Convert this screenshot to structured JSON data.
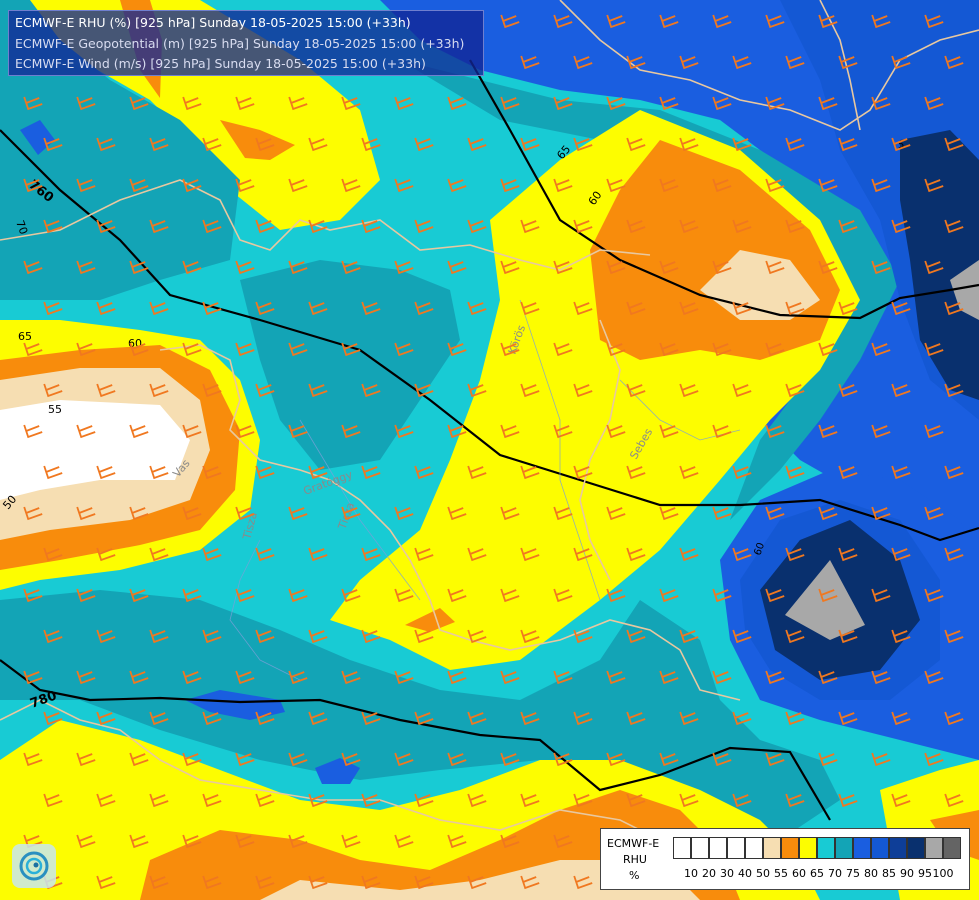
{
  "header": {
    "line1": "ECMWF-E RHU (%) [925 hPa] Sunday 18-05-2025 15:00 (+33h)",
    "line2": "ECMWF-E Geopotential (m) [925 hPa] Sunday 18-05-2025 15:00 (+33h)",
    "line3": "ECMWF-E Wind (m/s) [925 hPa] Sunday 18-05-2025 15:00 (+33h)"
  },
  "map": {
    "contour_labels": [
      "760",
      "780",
      "70",
      "65",
      "60",
      "55",
      "50",
      "65",
      "60",
      "50",
      "60",
      "5"
    ],
    "river_labels": [
      "Tisza",
      "Körös",
      "Sebes",
      "Vas",
      "Gratóggy",
      "Tisza"
    ],
    "colors": {
      "rhu_50": "#f6deb2",
      "rhu_55": "#f88c0c",
      "rhu_60": "#fdfd00",
      "rhu_65": "#18cbd4",
      "rhu_70": "#13a4b6",
      "rhu_75": "#1a5ee0",
      "rhu_80": "#1458d4",
      "rhu_85": "#0e3e98",
      "rhu_90": "#09306e",
      "rhu_95": "#a8a8a8",
      "rhu_100": "#646464",
      "geopotential_line": "#000000",
      "border_line": "#e8c8a0",
      "wind_barb": "#f07820"
    }
  },
  "legend": {
    "title1": "ECMWF-E",
    "title2": "RHU",
    "unit": "%",
    "levels": [
      "10",
      "20",
      "30",
      "40",
      "50",
      "55",
      "60",
      "65",
      "70",
      "75",
      "80",
      "85",
      "90",
      "95",
      "100"
    ],
    "swatch_colors": [
      "#ffffff",
      "#ffffff",
      "#ffffff",
      "#ffffff",
      "#ffffff",
      "#f6deb2",
      "#f88c0c",
      "#fdfd00",
      "#18cbd4",
      "#13a4b6",
      "#1a5ee0",
      "#1458d4",
      "#0e3e98",
      "#09306e",
      "#a8a8a8",
      "#646464"
    ]
  }
}
